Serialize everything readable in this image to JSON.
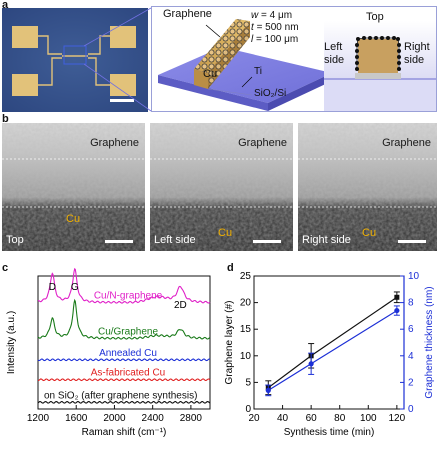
{
  "panel_a": {
    "letter": "a",
    "schematic": {
      "graphene_label": "Graphene",
      "cu_label": "Cu",
      "ti_label": "Ti",
      "substrate_label": "SiO₂/Si",
      "dims": [
        {
          "sym": "w",
          "val": "= 4 μm"
        },
        {
          "sym": "t",
          "val": "= 500 nm"
        },
        {
          "sym": "l",
          "val": "= 100 μm"
        }
      ]
    },
    "cross_section": {
      "top": "Top",
      "left": "Left side",
      "left2": "",
      "right": "Right side"
    }
  },
  "panel_b": {
    "letter": "b",
    "images": [
      {
        "graphene": "Graphene",
        "cu": "Cu",
        "label": "Top"
      },
      {
        "graphene": "Graphene",
        "cu": "Cu",
        "label": "Left side"
      },
      {
        "graphene": "Graphene",
        "cu": "Cu",
        "label": "Right side"
      }
    ]
  },
  "chart_data": [
    {
      "panel": "c",
      "type": "line",
      "xlabel": "Raman shift (cm⁻¹)",
      "ylabel": "Intensity (a.u.)",
      "xlim": [
        1200,
        3000
      ],
      "xticks": [
        1200,
        1600,
        2000,
        2400,
        2800
      ],
      "peak_labels": [
        {
          "text": "D",
          "x": 1350
        },
        {
          "text": "G",
          "x": 1585
        },
        {
          "text": "2D",
          "x": 2690
        }
      ],
      "series": [
        {
          "name": "Cu/N-graphene",
          "color": "#e020c8",
          "baseline": 0.8,
          "peaks": [
            [
              1350,
              0.22
            ],
            [
              1585,
              0.25
            ],
            [
              2690,
              0.12
            ]
          ]
        },
        {
          "name": "Cu/Graphene",
          "color": "#1a7a1a",
          "baseline": 0.53,
          "peaks": [
            [
              1350,
              0.15
            ],
            [
              1585,
              0.28
            ],
            [
              2690,
              0.07
            ]
          ]
        },
        {
          "name": "Annealed Cu",
          "color": "#1c2fd6",
          "baseline": 0.37,
          "peaks": []
        },
        {
          "name": "As-fabricated Cu",
          "color": "#e02020",
          "baseline": 0.22,
          "peaks": []
        },
        {
          "name": "on SiO₂ (after graphene synthesis)",
          "color": "#111111",
          "baseline": 0.05,
          "peaks": []
        }
      ]
    },
    {
      "panel": "d",
      "type": "line",
      "xlabel": "Synthesis time (min)",
      "ylabel": "Graphene layer (#)",
      "ylabel_right": "Graphene thickness (nm)",
      "xlim": [
        20,
        125
      ],
      "xticks": [
        20,
        40,
        60,
        80,
        100,
        120
      ],
      "ylim": [
        0,
        25
      ],
      "yticks": [
        0,
        5,
        10,
        15,
        20,
        25
      ],
      "ylim_right": [
        0,
        10
      ],
      "yticks_right": [
        0,
        2,
        4,
        6,
        8,
        10
      ],
      "series": [
        {
          "name": "Graphene layer",
          "axis": "left",
          "color": "#111111",
          "marker": "square",
          "points": [
            {
              "x": 30,
              "y": 4.0,
              "err": 1.3
            },
            {
              "x": 60,
              "y": 10.0,
              "err": 2.3
            },
            {
              "x": 120,
              "y": 21.0,
              "err": 1.0
            }
          ]
        },
        {
          "name": "Graphene thickness",
          "axis": "right",
          "color": "#1c2fd6",
          "marker": "circle",
          "points": [
            {
              "x": 30,
              "y": 1.4,
              "err": 0.4
            },
            {
              "x": 60,
              "y": 3.4,
              "err": 0.8
            },
            {
              "x": 120,
              "y": 7.4,
              "err": 0.35
            }
          ]
        }
      ]
    }
  ]
}
